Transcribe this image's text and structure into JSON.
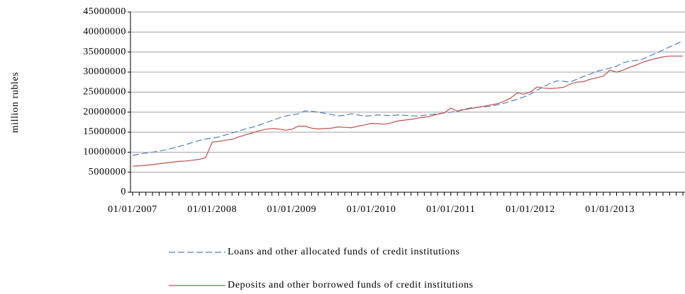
{
  "chart_data": {
    "type": "line",
    "y_label": "million rubles",
    "categories": [
      "01/01/2007",
      null,
      null,
      null,
      null,
      null,
      null,
      null,
      null,
      null,
      null,
      null,
      "01/01/2008",
      null,
      null,
      null,
      null,
      null,
      null,
      null,
      null,
      null,
      null,
      null,
      "01/01/2009",
      null,
      null,
      null,
      null,
      null,
      null,
      null,
      null,
      null,
      null,
      null,
      "01/01/2010",
      null,
      null,
      null,
      null,
      null,
      null,
      null,
      null,
      null,
      null,
      null,
      "01/01/2011",
      null,
      null,
      null,
      null,
      null,
      null,
      null,
      null,
      null,
      null,
      null,
      "01/01/2012",
      null,
      null,
      null,
      null,
      null,
      null,
      null,
      null,
      null,
      null,
      null,
      "01/01/2013",
      null,
      null,
      null,
      null,
      null,
      null,
      null,
      null,
      null,
      null,
      null
    ],
    "series": [
      {
        "name": "Loans and other allocated funds of credit institutions",
        "color": "#4f81bd",
        "dash": "dashed",
        "values": [
          9200000,
          9500000,
          9800000,
          10000000,
          10300000,
          10600000,
          11000000,
          11400000,
          11900000,
          12400000,
          12900000,
          13300000,
          13500000,
          13800000,
          14300000,
          14800000,
          15300000,
          15800000,
          16200000,
          16700000,
          17300000,
          17900000,
          18500000,
          19000000,
          19300000,
          19600000,
          20300000,
          20200000,
          20000000,
          19700000,
          19400000,
          19100000,
          19200000,
          19600000,
          19300000,
          19000000,
          19100000,
          19300000,
          19200000,
          19100000,
          19300000,
          19200000,
          19100000,
          19000000,
          19200000,
          19400000,
          19600000,
          19800000,
          20000000,
          20300000,
          20700000,
          21100000,
          21200000,
          21300000,
          21500000,
          21800000,
          22200000,
          22700000,
          23200000,
          23800000,
          24500000,
          25500000,
          26300000,
          27200000,
          27800000,
          27700000,
          27500000,
          28200000,
          28900000,
          29500000,
          30200000,
          30600000,
          31000000,
          31500000,
          32300000,
          32800000,
          32900000,
          33300000,
          34000000,
          34800000,
          35500000,
          36300000,
          37000000,
          37800000
        ]
      },
      {
        "name": "Deposits and other borrowed funds of credit institutions",
        "color": "#c0504d",
        "dash": "solid",
        "values": [
          6500000,
          6600000,
          6700000,
          6900000,
          7100000,
          7300000,
          7500000,
          7700000,
          7800000,
          8000000,
          8200000,
          8600000,
          12500000,
          12700000,
          13000000,
          13200000,
          13800000,
          14300000,
          14800000,
          15300000,
          15700000,
          15900000,
          15800000,
          15500000,
          15700000,
          16500000,
          16500000,
          16000000,
          15800000,
          15900000,
          16000000,
          16300000,
          16200000,
          16100000,
          16500000,
          16800000,
          17200000,
          17100000,
          17000000,
          17300000,
          17800000,
          18000000,
          18200000,
          18500000,
          18700000,
          19000000,
          19500000,
          19800000,
          21000000,
          20200000,
          20600000,
          20900000,
          21200000,
          21500000,
          21800000,
          22100000,
          22700000,
          23500000,
          24800000,
          24500000,
          25000000,
          26300000,
          26000000,
          25900000,
          26000000,
          26200000,
          27000000,
          27500000,
          27600000,
          28200000,
          28600000,
          29000000,
          30500000,
          30000000,
          30500000,
          31200000,
          31800000,
          32500000,
          33000000,
          33400000,
          33800000,
          34000000,
          34000000,
          34000000
        ]
      }
    ],
    "ylim": [
      0,
      45000000
    ],
    "yticks": [
      0,
      5000000,
      10000000,
      15000000,
      20000000,
      25000000,
      30000000,
      35000000,
      40000000,
      45000000
    ],
    "grid": true,
    "legend": "bottom"
  }
}
